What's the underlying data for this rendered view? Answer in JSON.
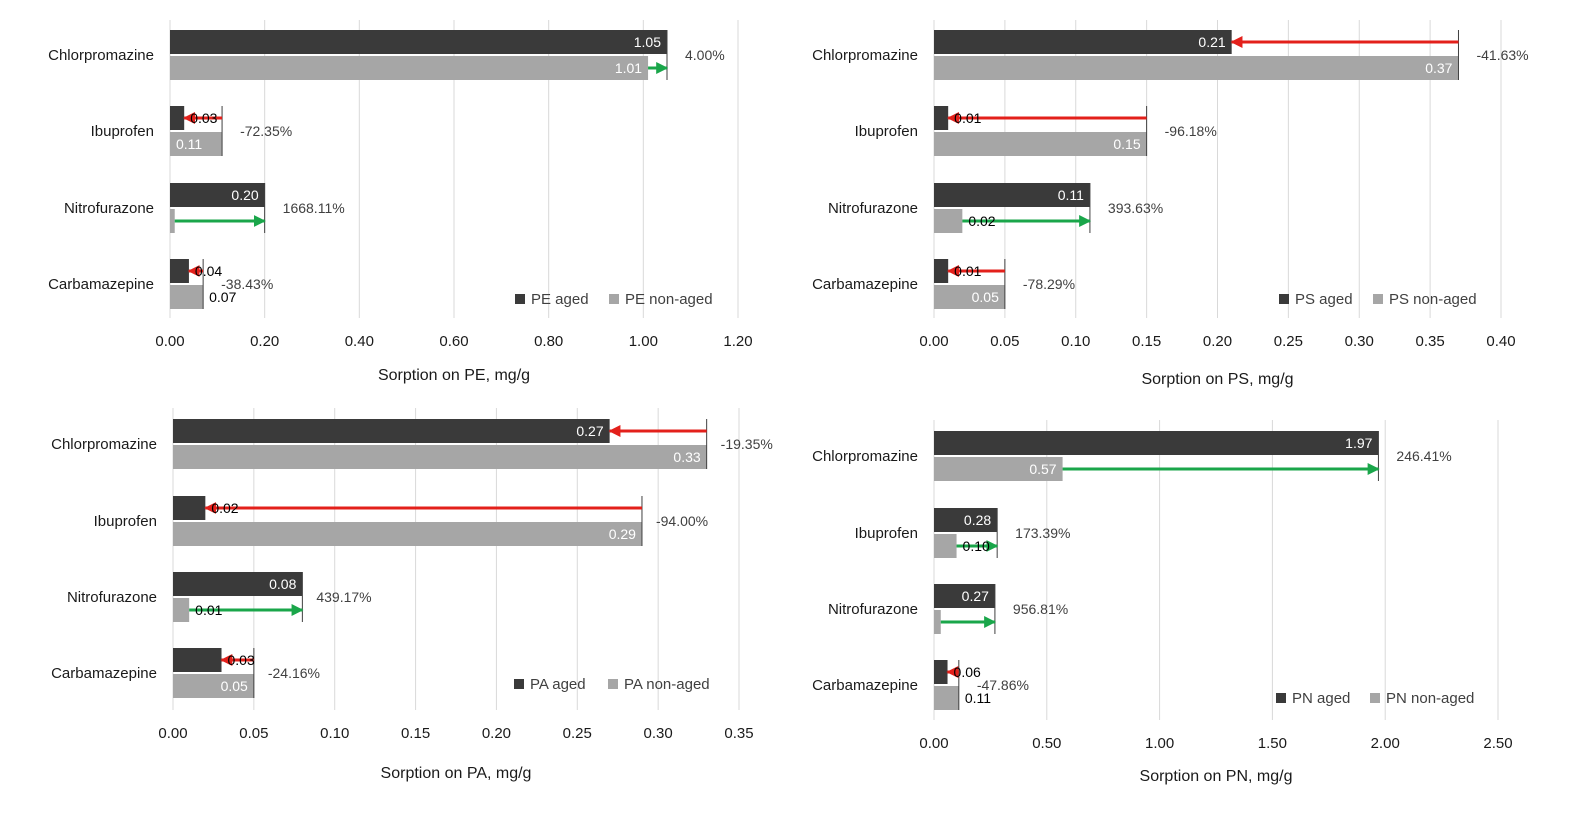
{
  "chart_data": [
    {
      "type": "bar",
      "title": "",
      "xlabel": "Sorption on PE, mg/g",
      "ylabel": "",
      "xlim": [
        0,
        1.2
      ],
      "ticks": [
        "0.00",
        "0.20",
        "0.40",
        "0.60",
        "0.80",
        "1.00",
        "1.20"
      ],
      "categories": [
        "Chlorpromazine",
        "Ibuprofen",
        "Nitrofurazone",
        "Carbamazepine"
      ],
      "series": [
        {
          "name": "PE aged",
          "color": "#3a3a3a",
          "values": [
            1.05,
            0.03,
            0.2,
            0.04
          ],
          "labels": [
            "1.05",
            "0.03",
            "0.20",
            "0.04"
          ]
        },
        {
          "name": "PE non-aged",
          "color": "#a6a6a6",
          "values": [
            1.01,
            0.11,
            0.01,
            0.07
          ],
          "labels": [
            "1.01",
            "0.11",
            "",
            "0.07"
          ]
        }
      ],
      "changes": [
        "4.00%",
        "-72.35%",
        "1668.11%",
        "-38.43%"
      ],
      "legend_position": "bottom-right"
    },
    {
      "type": "bar",
      "title": "",
      "xlabel": "Sorption on PS, mg/g",
      "ylabel": "",
      "xlim": [
        0,
        0.4
      ],
      "ticks": [
        "0.00",
        "0.05",
        "0.10",
        "0.15",
        "0.20",
        "0.25",
        "0.30",
        "0.35",
        "0.40"
      ],
      "categories": [
        "Chlorpromazine",
        "Ibuprofen",
        "Nitrofurazone",
        "Carbamazepine"
      ],
      "series": [
        {
          "name": "PS aged",
          "color": "#3a3a3a",
          "values": [
            0.21,
            0.01,
            0.11,
            0.01
          ],
          "labels": [
            "0.21",
            "0.01",
            "0.11",
            "0.01"
          ]
        },
        {
          "name": "PS non-aged",
          "color": "#a6a6a6",
          "values": [
            0.37,
            0.15,
            0.02,
            0.05
          ],
          "labels": [
            "0.37",
            "0.15",
            "0.02",
            "0.05"
          ]
        }
      ],
      "changes": [
        "-41.63%",
        "-96.18%",
        "393.63%",
        "-78.29%"
      ],
      "legend_position": "bottom-right"
    },
    {
      "type": "bar",
      "title": "",
      "xlabel": "Sorption on PA, mg/g",
      "ylabel": "",
      "xlim": [
        0,
        0.35
      ],
      "ticks": [
        "0.00",
        "0.05",
        "0.10",
        "0.15",
        "0.20",
        "0.25",
        "0.30",
        "0.35"
      ],
      "categories": [
        "Chlorpromazine",
        "Ibuprofen",
        "Nitrofurazone",
        "Carbamazepine"
      ],
      "series": [
        {
          "name": "PA aged",
          "color": "#3a3a3a",
          "values": [
            0.27,
            0.02,
            0.08,
            0.03
          ],
          "labels": [
            "0.27",
            "0.02",
            "0.08",
            "0.03"
          ]
        },
        {
          "name": "PA non-aged",
          "color": "#a6a6a6",
          "values": [
            0.33,
            0.29,
            0.01,
            0.05
          ],
          "labels": [
            "0.33",
            "0.29",
            "0.01",
            "0.05"
          ]
        }
      ],
      "changes": [
        "-19.35%",
        "-94.00%",
        "439.17%",
        "-24.16%"
      ],
      "legend_position": "bottom-right"
    },
    {
      "type": "bar",
      "title": "",
      "xlabel": "Sorption on PN, mg/g",
      "ylabel": "",
      "xlim": [
        0,
        2.5
      ],
      "ticks": [
        "0.00",
        "0.50",
        "1.00",
        "1.50",
        "2.00",
        "2.50"
      ],
      "categories": [
        "Chlorpromazine",
        "Ibuprofen",
        "Nitrofurazone",
        "Carbamazepine"
      ],
      "series": [
        {
          "name": "PN aged",
          "color": "#3a3a3a",
          "values": [
            1.97,
            0.28,
            0.27,
            0.06
          ],
          "labels": [
            "1.97",
            "0.28",
            "0.27",
            "0.06"
          ]
        },
        {
          "name": "PN non-aged",
          "color": "#a6a6a6",
          "values": [
            0.57,
            0.1,
            0.03,
            0.11
          ],
          "labels": [
            "0.57",
            "0.10",
            "",
            "0.11"
          ]
        }
      ],
      "changes": [
        "246.41%",
        "173.39%",
        "956.81%",
        "-47.86%"
      ],
      "legend_position": "bottom-right"
    }
  ],
  "colors": {
    "aged": "#3a3a3a",
    "non_aged": "#a6a6a6",
    "increase_arrow": "#1aa64a",
    "decrease_arrow": "#e3201b",
    "grid": "#d9d9d9"
  }
}
